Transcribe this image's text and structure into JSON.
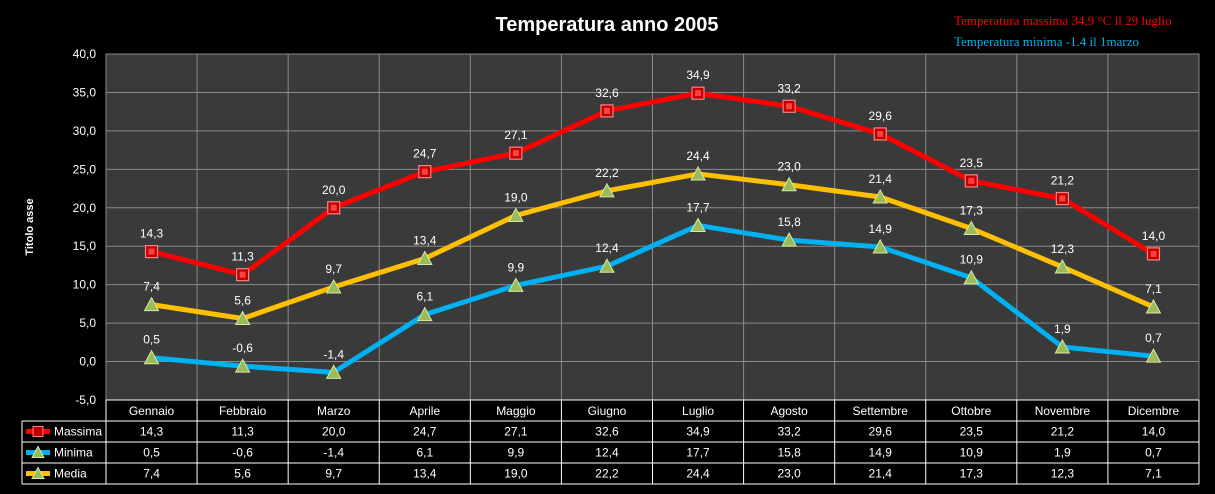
{
  "chart_data": {
    "type": "line",
    "title": "Temperatura anno 2005",
    "ylabel": "Titolo asse",
    "xlabel": "",
    "ylim": [
      -5,
      40
    ],
    "ytick_step": 5,
    "ytick_labels": [
      "-5,0",
      "0,0",
      "5,0",
      "10,0",
      "15,0",
      "20,0",
      "25,0",
      "30,0",
      "35,0",
      "40,0"
    ],
    "grid": true,
    "annotations": [
      {
        "text": "Temperatura massima 34,9 °C il 29 luglio",
        "color": "#ff0000"
      },
      {
        "text": "Temperatura minima -1.4 il 1marzo",
        "color": "#00b0f0"
      }
    ],
    "categories": [
      "Gennaio",
      "Febbraio",
      "Marzo",
      "Aprile",
      "Maggio",
      "Giugno",
      "Luglio",
      "Agosto",
      "Settembre",
      "Ottobre",
      "Novembre",
      "Dicembre"
    ],
    "series": [
      {
        "name": "Massima",
        "color": "#ff0000",
        "marker": "square",
        "values": [
          14.3,
          11.3,
          20.0,
          24.7,
          27.1,
          32.6,
          34.9,
          33.2,
          29.6,
          23.5,
          21.2,
          14.0
        ],
        "labels": [
          "14,3",
          "11,3",
          "20,0",
          "24,7",
          "27,1",
          "32,6",
          "34,9",
          "33,2",
          "29,6",
          "23,5",
          "21,2",
          "14,0"
        ]
      },
      {
        "name": "Minima",
        "color": "#00b0f0",
        "marker": "triangle",
        "values": [
          0.5,
          -0.6,
          -1.4,
          6.1,
          9.9,
          12.4,
          17.7,
          15.8,
          14.9,
          10.9,
          1.9,
          0.7
        ],
        "labels": [
          "0,5",
          "-0,6",
          "-1,4",
          "6,1",
          "9,9",
          "12,4",
          "17,7",
          "15,8",
          "14,9",
          "10,9",
          "1,9",
          "0,7"
        ]
      },
      {
        "name": "Media",
        "color": "#ffc000",
        "marker": "triangle",
        "values": [
          7.4,
          5.6,
          9.7,
          13.4,
          19.0,
          22.2,
          24.4,
          23.0,
          21.4,
          17.3,
          12.3,
          7.1
        ],
        "labels": [
          "7,4",
          "5,6",
          "9,7",
          "13,4",
          "19,0",
          "22,2",
          "24,4",
          "23,0",
          "21,4",
          "17,3",
          "12,3",
          "7,1"
        ]
      }
    ]
  }
}
